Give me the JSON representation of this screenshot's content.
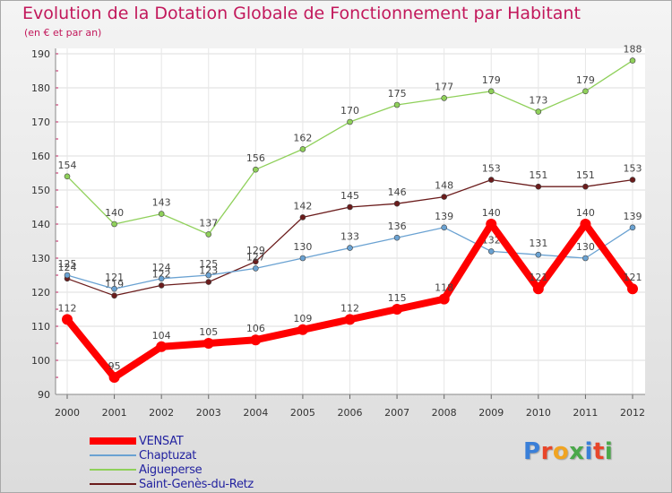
{
  "title": "Evolution de la Dotation Globale de Fonctionnement par Habitant",
  "subtitle": "(en € et par an)",
  "logo": {
    "text": "Proxiti",
    "colors": [
      "#3a7fd8",
      "#e8462a",
      "#f0a422",
      "#4aa84a",
      "#3a7fd8",
      "#e8462a",
      "#4aa84a"
    ]
  },
  "chart_data": {
    "type": "line",
    "title": "Evolution de la Dotation Globale de Fonctionnement par Habitant",
    "subtitle": "(en € et par an)",
    "x": [
      "2000",
      "2001",
      "2002",
      "2003",
      "2004",
      "2005",
      "2006",
      "2007",
      "2008",
      "2009",
      "2010",
      "2011",
      "2012"
    ],
    "ylim": [
      90,
      190
    ],
    "yticks": [
      90,
      100,
      110,
      120,
      130,
      140,
      150,
      160,
      170,
      180,
      190
    ],
    "grid": true,
    "series": [
      {
        "name": "Saint-Genès-du-Retz",
        "color": "#6b1c1c",
        "values": [
          124,
          119,
          122,
          123,
          129,
          142,
          145,
          146,
          148,
          153,
          151,
          151,
          153
        ]
      },
      {
        "name": "Aigueperse",
        "color": "#8fd05a",
        "values": [
          154,
          140,
          143,
          137,
          156,
          162,
          170,
          175,
          177,
          179,
          173,
          179,
          188
        ]
      },
      {
        "name": "Chaptuzat",
        "color": "#6aa2d2",
        "values": [
          125,
          121,
          124,
          125,
          127,
          130,
          133,
          136,
          139,
          132,
          131,
          130,
          139
        ]
      },
      {
        "name": "VENSAT",
        "color": "#ff0000",
        "values": [
          112,
          95,
          104,
          105,
          106,
          109,
          112,
          115,
          118,
          140,
          121,
          140,
          121
        ]
      }
    ],
    "legend": [
      {
        "name": "VENSAT",
        "color": "#ff0000",
        "thick": true
      },
      {
        "name": "Chaptuzat",
        "color": "#6aa2d2",
        "thick": false
      },
      {
        "name": "Aigueperse",
        "color": "#8fd05a",
        "thick": false
      },
      {
        "name": "Saint-Genès-du-Retz",
        "color": "#6b1c1c",
        "thick": false
      }
    ]
  }
}
